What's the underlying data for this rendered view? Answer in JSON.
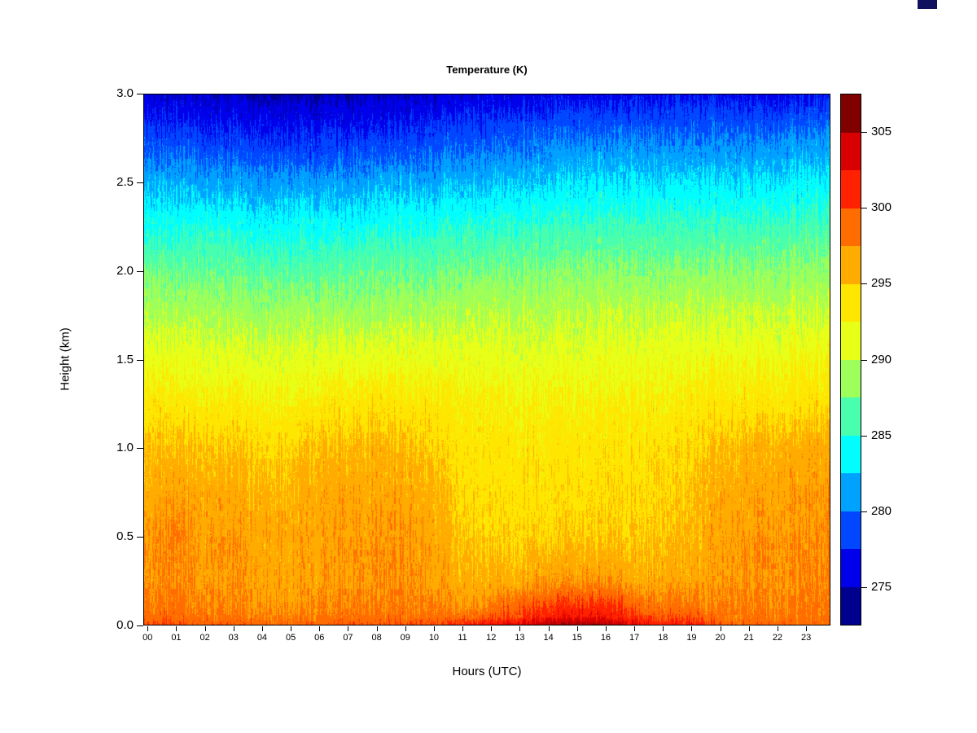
{
  "decor": {
    "corner_mark_color": "#10105e"
  },
  "chart_data": {
    "type": "heatmap",
    "title": "Temperature (K)",
    "xlabel": "Hours (UTC)",
    "ylabel": "Height (km)",
    "units": "K",
    "x_ticks": [
      "00",
      "01",
      "02",
      "03",
      "04",
      "05",
      "06",
      "07",
      "08",
      "09",
      "10",
      "11",
      "12",
      "13",
      "14",
      "15",
      "16",
      "17",
      "18",
      "19",
      "20",
      "21",
      "22",
      "23"
    ],
    "y_ticks": [
      "0.0",
      "0.5",
      "1.0",
      "1.5",
      "2.0",
      "2.5",
      "3.0"
    ],
    "x_range_hours": [
      0,
      24
    ],
    "y_range_km": [
      0,
      3
    ],
    "grid": false,
    "legend_position": "right",
    "noise_amplitude_K": 1.5,
    "heights_km": [
      0,
      0.05,
      0.1,
      0.25,
      0.5,
      0.75,
      1.0,
      1.25,
      1.5,
      1.75,
      2.0,
      2.25,
      2.5,
      2.75,
      3.0
    ],
    "hours_utc": [
      0,
      1,
      2,
      3,
      4,
      5,
      6,
      7,
      8,
      9,
      10,
      11,
      12,
      13,
      14,
      15,
      16,
      17,
      18,
      19,
      20,
      21,
      22,
      23
    ],
    "values_K_by_hour": [
      [
        300.0,
        298.5,
        297.8,
        297.0,
        296.5,
        296.0,
        295.0,
        293.5,
        291.5,
        289.5,
        287.5,
        284.5,
        281.5,
        278.5,
        275.5
      ],
      [
        300.5,
        299.0,
        298.3,
        297.8,
        298.0,
        296.8,
        295.5,
        293.5,
        291.5,
        289.5,
        287.0,
        284.5,
        281.5,
        278.5,
        275.5
      ],
      [
        299.5,
        298.3,
        297.8,
        297.0,
        296.8,
        296.2,
        295.0,
        293.0,
        291.0,
        289.5,
        287.0,
        284.5,
        281.5,
        278.0,
        275.2
      ],
      [
        299.5,
        298.2,
        297.7,
        297.2,
        297.0,
        296.2,
        295.0,
        293.0,
        291.0,
        289.0,
        287.0,
        284.5,
        281.0,
        278.0,
        275.0
      ],
      [
        299.3,
        298.0,
        297.5,
        296.8,
        296.6,
        296.0,
        294.8,
        293.0,
        291.0,
        289.0,
        287.0,
        284.0,
        281.0,
        278.0,
        274.8
      ],
      [
        299.0,
        297.8,
        297.2,
        296.5,
        296.3,
        295.7,
        294.3,
        292.5,
        291.0,
        289.0,
        286.5,
        284.0,
        281.0,
        277.5,
        274.6
      ],
      [
        299.2,
        298.0,
        297.5,
        296.8,
        296.6,
        296.2,
        295.3,
        293.3,
        291.0,
        289.0,
        286.5,
        284.0,
        281.0,
        277.5,
        274.6
      ],
      [
        299.8,
        298.3,
        297.8,
        297.2,
        297.0,
        296.5,
        295.5,
        293.5,
        291.5,
        289.0,
        287.0,
        284.0,
        281.0,
        278.0,
        274.8
      ],
      [
        300.0,
        298.5,
        298.0,
        297.5,
        297.2,
        296.6,
        295.8,
        294.0,
        291.5,
        289.0,
        287.0,
        284.5,
        281.5,
        278.0,
        275.0
      ],
      [
        300.0,
        298.4,
        297.9,
        297.3,
        297.0,
        296.4,
        295.5,
        293.5,
        291.5,
        289.5,
        287.0,
        284.5,
        281.5,
        278.0,
        275.0
      ],
      [
        300.2,
        298.4,
        297.8,
        297.0,
        296.6,
        296.0,
        295.0,
        293.5,
        291.5,
        289.5,
        287.0,
        284.5,
        281.5,
        278.5,
        275.2
      ],
      [
        301.0,
        298.5,
        297.3,
        296.0,
        295.0,
        294.3,
        293.8,
        292.8,
        291.3,
        289.5,
        287.5,
        285.0,
        282.0,
        279.0,
        275.5
      ],
      [
        302.3,
        299.3,
        297.6,
        295.8,
        294.5,
        294.0,
        293.6,
        292.7,
        291.2,
        289.7,
        287.6,
        285.0,
        282.0,
        279.0,
        275.8
      ],
      [
        303.5,
        300.2,
        299.5,
        296.2,
        294.6,
        294.0,
        293.6,
        292.7,
        291.2,
        289.7,
        287.7,
        285.2,
        282.4,
        279.4,
        276.0
      ],
      [
        305.0,
        301.5,
        300.5,
        297.0,
        294.8,
        294.1,
        293.6,
        292.7,
        291.2,
        289.8,
        287.8,
        285.4,
        282.6,
        279.6,
        276.3
      ],
      [
        306.0,
        302.5,
        301.2,
        297.3,
        295.0,
        294.2,
        293.7,
        292.8,
        291.3,
        289.9,
        288.0,
        285.5,
        283.0,
        280.0,
        276.5
      ],
      [
        305.3,
        302.0,
        301.0,
        297.2,
        295.0,
        294.2,
        293.7,
        292.8,
        291.4,
        290.0,
        288.0,
        285.6,
        283.0,
        280.0,
        276.5
      ],
      [
        303.5,
        300.8,
        299.8,
        296.6,
        295.0,
        294.3,
        293.8,
        292.9,
        291.5,
        290.0,
        288.1,
        285.6,
        283.1,
        280.1,
        276.6
      ],
      [
        301.5,
        299.5,
        298.5,
        296.4,
        295.2,
        294.6,
        294.1,
        293.1,
        291.6,
        290.1,
        288.1,
        285.7,
        283.1,
        280.1,
        276.7
      ],
      [
        301.8,
        299.8,
        298.6,
        296.6,
        295.5,
        295.0,
        294.4,
        293.2,
        291.7,
        290.1,
        288.1,
        285.6,
        283.0,
        280.0,
        276.6
      ],
      [
        299.5,
        298.2,
        297.7,
        297.0,
        296.6,
        296.0,
        295.2,
        293.4,
        291.8,
        290.0,
        288.0,
        285.5,
        283.0,
        280.0,
        276.5
      ],
      [
        299.3,
        298.2,
        297.8,
        297.3,
        297.0,
        296.4,
        295.6,
        293.6,
        291.9,
        290.0,
        288.0,
        285.5,
        283.0,
        280.0,
        276.5
      ],
      [
        299.2,
        298.3,
        297.9,
        297.5,
        297.3,
        296.8,
        295.9,
        293.8,
        292.0,
        290.2,
        288.2,
        285.7,
        283.2,
        280.2,
        276.7
      ],
      [
        299.2,
        298.3,
        298.0,
        297.6,
        297.4,
        297.0,
        296.2,
        294.0,
        292.2,
        290.4,
        288.4,
        286.0,
        283.5,
        280.5,
        277.0
      ]
    ],
    "colorbar": {
      "levels_K": [
        272.5,
        275,
        277.5,
        280,
        282.5,
        285,
        287.5,
        290,
        292.5,
        295,
        297.5,
        300,
        302.5,
        305,
        307.5
      ],
      "band_colors": [
        "#00008F",
        "#0000EA",
        "#0047FF",
        "#00A2FF",
        "#00FEFF",
        "#49FFAD",
        "#9DFF5A",
        "#E8FF17",
        "#FFE600",
        "#FFAB00",
        "#FF6D00",
        "#FF2100",
        "#D80000",
        "#800000"
      ],
      "tick_values": [
        275,
        280,
        285,
        290,
        295,
        300,
        305
      ],
      "tick_labels": [
        "275",
        "280",
        "285",
        "290",
        "295",
        "300",
        "305"
      ]
    }
  }
}
